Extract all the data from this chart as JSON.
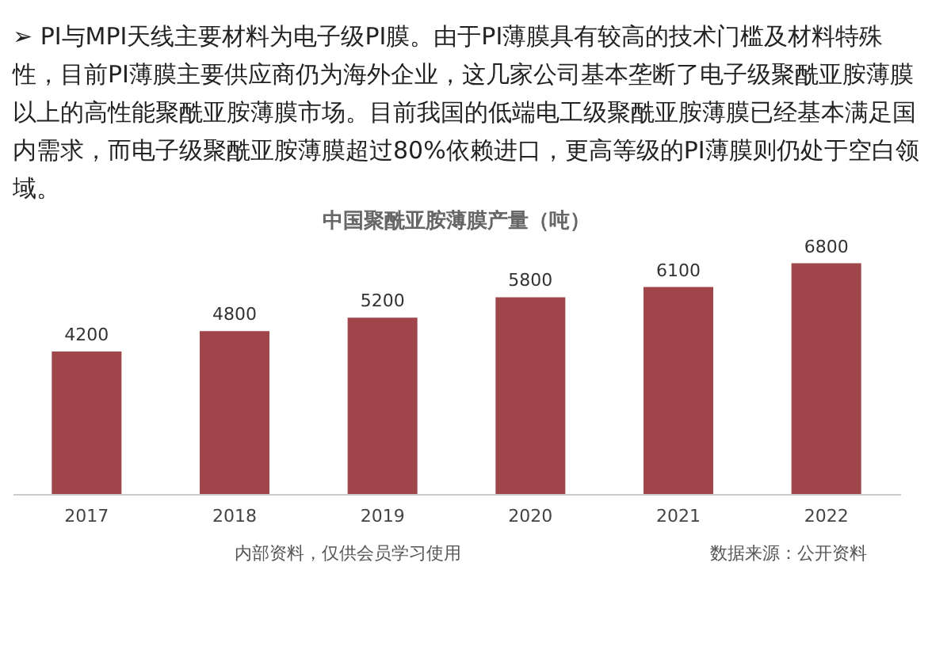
{
  "chart_data": {
    "type": "bar",
    "title": "中国聚酰亚胺薄膜产量（吨）",
    "subtitle": "➢ PI与MPI天线主要材料为电子级PI膜。由于PI薄膜具有较高的技术门槛及材料特殊性，目前PI薄膜主要供应商仍为海外企业，这几家公司基本垄断了电子级聚酰亚胺薄膜以上的高性能聚酰亚胺薄膜市场。目前我国的低端电工级聚酰亚胺薄膜已经基本满足国内需求，而电子级聚酰亚胺薄膜超过80%依赖进口，更高等级的PI薄膜则仍处于空白领域。",
    "categories": [
      "2017",
      "2018",
      "2019",
      "2020",
      "2021",
      "2022"
    ],
    "values": [
      4200,
      4800,
      5200,
      5800,
      6100,
      6800
    ],
    "color": "#a0464b",
    "data_labels": true,
    "tick_labels": "x",
    "annotations": [
      "内部资料，仅供会员学习使用",
      "数据来源：公开资料"
    ]
  }
}
